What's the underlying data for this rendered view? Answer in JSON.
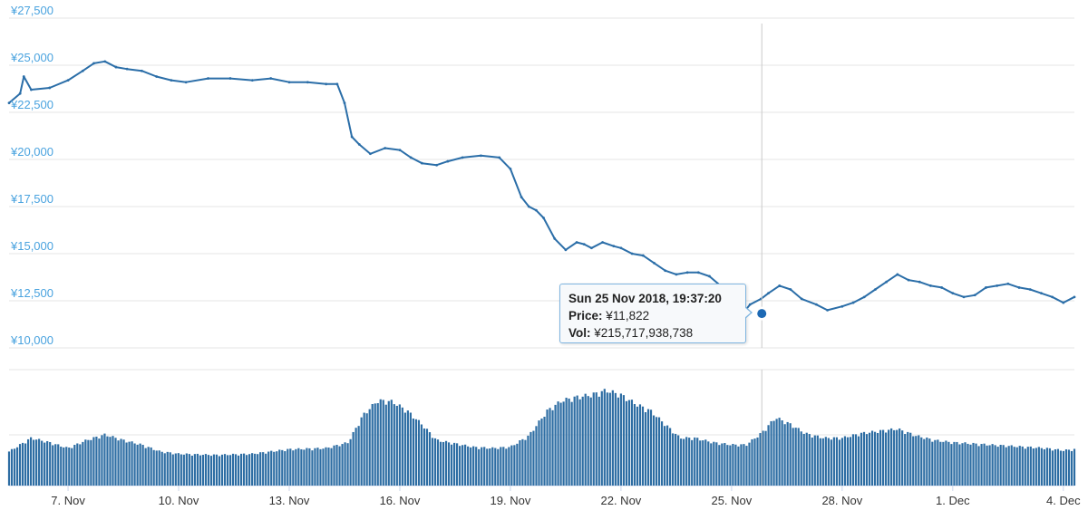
{
  "chart_data": {
    "type": "line",
    "currency": "¥",
    "price_axis": {
      "ylim": [
        10000,
        27500
      ],
      "ticks": [
        10000,
        12500,
        15000,
        17500,
        20000,
        22500,
        25000,
        27500
      ],
      "tick_labels": [
        "¥10,000",
        "¥12,500",
        "¥15,000",
        "¥17,500",
        "¥20,000",
        "¥22,500",
        "¥25,000",
        "¥27,500"
      ],
      "grid": true
    },
    "x_axis": {
      "range_days": [
        5.4,
        34.3
      ],
      "ticks": [
        7,
        10,
        13,
        16,
        19,
        22,
        25,
        28,
        31,
        34
      ],
      "tick_labels": [
        "7. Nov",
        "10. Nov",
        "13. Nov",
        "16. Nov",
        "19. Nov",
        "22. Nov",
        "25. Nov",
        "28. Nov",
        "1. Dec",
        "4. Dec"
      ]
    },
    "series": [
      {
        "type": "line",
        "x_days_nov_2018": [
          5.4,
          5.7,
          5.8,
          6.0,
          6.5,
          7.0,
          7.4,
          7.7,
          8.0,
          8.3,
          8.6,
          9.0,
          9.4,
          9.8,
          10.2,
          10.8,
          11.4,
          12.0,
          12.5,
          13.0,
          13.5,
          14.0,
          14.3,
          14.5,
          14.7,
          14.9,
          15.2,
          15.6,
          16.0,
          16.3,
          16.6,
          17.0,
          17.3,
          17.7,
          18.2,
          18.7,
          19.0,
          19.3,
          19.5,
          19.7,
          19.9,
          20.2,
          20.5,
          20.8,
          21.0,
          21.2,
          21.5,
          21.8,
          22.0,
          22.3,
          22.6,
          22.9,
          23.2,
          23.5,
          23.8,
          24.1,
          24.4,
          24.7,
          25.0,
          25.3,
          25.5,
          25.8,
          26.0,
          26.3,
          26.6,
          26.9,
          27.3,
          27.6,
          28.0,
          28.3,
          28.6,
          28.9,
          29.2,
          29.5,
          29.8,
          30.1,
          30.4,
          30.7,
          31.0,
          31.3,
          31.6,
          31.9,
          32.2,
          32.5,
          32.8,
          33.1,
          33.4,
          33.7,
          34.0,
          34.3
        ],
        "price": [
          23000,
          23500,
          24400,
          23700,
          23800,
          24200,
          24700,
          25100,
          25200,
          24900,
          24800,
          24700,
          24400,
          24200,
          24100,
          24300,
          24300,
          24200,
          24300,
          24100,
          24100,
          24000,
          24000,
          23000,
          21200,
          20800,
          20300,
          20600,
          20500,
          20100,
          19800,
          19700,
          19900,
          20100,
          20200,
          20100,
          19500,
          18000,
          17500,
          17300,
          16900,
          15800,
          15200,
          15600,
          15500,
          15300,
          15600,
          15400,
          15300,
          15000,
          14900,
          14500,
          14100,
          13900,
          14000,
          14000,
          13800,
          13300,
          12700,
          11822,
          12300,
          12600,
          12900,
          13300,
          13100,
          12600,
          12300,
          12000,
          12200,
          12400,
          12700,
          13100,
          13500,
          13900,
          13600,
          13500,
          13300,
          13200,
          12900,
          12700,
          12800,
          13200,
          13300,
          13400,
          13200,
          13100,
          12900,
          12700,
          12400,
          12700
        ]
      },
      {
        "type": "bar",
        "x_days_nov_2018": [
          5.4,
          6.0,
          6.5,
          7.0,
          7.5,
          8.0,
          8.5,
          9.0,
          9.5,
          10.0,
          11.0,
          12.0,
          13.0,
          14.0,
          14.6,
          15.0,
          15.4,
          15.8,
          16.2,
          16.6,
          17.0,
          17.5,
          18.0,
          18.5,
          19.0,
          19.5,
          20.0,
          20.4,
          20.8,
          21.2,
          21.6,
          22.0,
          22.4,
          22.8,
          23.2,
          23.6,
          24.0,
          24.5,
          25.0,
          25.4,
          25.8,
          26.2,
          26.6,
          27.0,
          27.5,
          28.0,
          28.5,
          29.0,
          29.5,
          30.0,
          30.5,
          31.0,
          31.5,
          32.0,
          32.5,
          33.0,
          33.5,
          34.0,
          34.3
        ],
        "relative_volume": [
          0.3,
          0.42,
          0.38,
          0.33,
          0.4,
          0.45,
          0.4,
          0.36,
          0.3,
          0.28,
          0.27,
          0.28,
          0.32,
          0.33,
          0.38,
          0.62,
          0.75,
          0.74,
          0.66,
          0.54,
          0.4,
          0.37,
          0.34,
          0.33,
          0.34,
          0.44,
          0.66,
          0.75,
          0.78,
          0.8,
          0.84,
          0.8,
          0.72,
          0.66,
          0.54,
          0.42,
          0.42,
          0.38,
          0.36,
          0.36,
          0.46,
          0.6,
          0.54,
          0.46,
          0.42,
          0.42,
          0.46,
          0.48,
          0.5,
          0.44,
          0.4,
          0.38,
          0.37,
          0.36,
          0.35,
          0.34,
          0.33,
          0.31,
          0.32
        ]
      }
    ],
    "tooltip": {
      "date": "Sun 25 Nov 2018, 19:37:20",
      "price_label": "Price:",
      "price_value": "¥11,822",
      "vol_label": "Vol:",
      "vol_value": "¥215,717,938,738",
      "x_day": 25.82,
      "price": 11822
    },
    "colors": {
      "line": "#2b6ea8",
      "bars": "#2d6da3",
      "grid": "#e6e6e6",
      "crosshair": "#c9c9c9",
      "axis_labels": "#4aa3df"
    }
  }
}
